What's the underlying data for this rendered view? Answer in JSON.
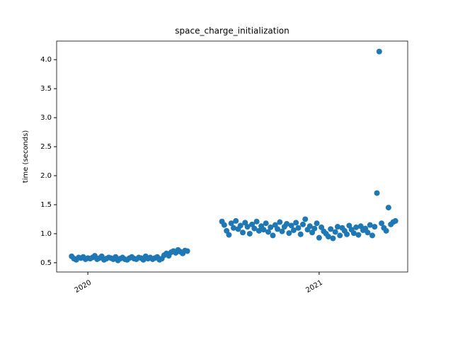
{
  "chart_data": {
    "type": "scatter",
    "title": "space_charge_initialization",
    "y_label": "time (seconds)",
    "color": "#1f77b4",
    "x": [
      2019.93,
      2019.94,
      2019.95,
      2019.96,
      2019.97,
      2019.98,
      2019.99,
      2020.0,
      2020.01,
      2020.02,
      2020.03,
      2020.04,
      2020.05,
      2020.06,
      2020.07,
      2020.08,
      2020.09,
      2020.1,
      2020.11,
      2020.12,
      2020.13,
      2020.14,
      2020.15,
      2020.16,
      2020.17,
      2020.18,
      2020.19,
      2020.2,
      2020.21,
      2020.22,
      2020.23,
      2020.24,
      2020.25,
      2020.26,
      2020.27,
      2020.28,
      2020.29,
      2020.3,
      2020.31,
      2020.32,
      2020.33,
      2020.34,
      2020.35,
      2020.36,
      2020.37,
      2020.38,
      2020.39,
      2020.4,
      2020.41,
      2020.42,
      2020.43,
      2020.58,
      2020.59,
      2020.6,
      2020.61,
      2020.62,
      2020.63,
      2020.64,
      2020.65,
      2020.66,
      2020.67,
      2020.68,
      2020.69,
      2020.7,
      2020.71,
      2020.72,
      2020.73,
      2020.74,
      2020.75,
      2020.76,
      2020.77,
      2020.78,
      2020.79,
      2020.8,
      2020.81,
      2020.82,
      2020.83,
      2020.84,
      2020.85,
      2020.86,
      2020.87,
      2020.88,
      2020.89,
      2020.9,
      2020.91,
      2020.92,
      2020.93,
      2020.94,
      2020.95,
      2020.96,
      2020.97,
      2020.98,
      2020.99,
      2021.0,
      2021.01,
      2021.02,
      2021.03,
      2021.04,
      2021.05,
      2021.06,
      2021.07,
      2021.08,
      2021.09,
      2021.1,
      2021.11,
      2021.12,
      2021.13,
      2021.14,
      2021.15,
      2021.16,
      2021.17,
      2021.18,
      2021.19,
      2021.2,
      2021.21,
      2021.22,
      2021.23,
      2021.24,
      2021.25,
      2021.26,
      2021.27,
      2021.28,
      2021.29,
      2021.3,
      2021.31,
      2021.32,
      2021.33
    ],
    "values": [
      0.61,
      0.57,
      0.55,
      0.59,
      0.58,
      0.6,
      0.56,
      0.58,
      0.57,
      0.59,
      0.62,
      0.56,
      0.58,
      0.61,
      0.55,
      0.57,
      0.59,
      0.58,
      0.56,
      0.6,
      0.54,
      0.57,
      0.59,
      0.56,
      0.55,
      0.58,
      0.6,
      0.57,
      0.56,
      0.59,
      0.58,
      0.55,
      0.61,
      0.57,
      0.59,
      0.56,
      0.58,
      0.6,
      0.55,
      0.57,
      0.63,
      0.66,
      0.62,
      0.68,
      0.7,
      0.67,
      0.72,
      0.69,
      0.66,
      0.71,
      0.7,
      1.21,
      1.15,
      1.05,
      0.98,
      1.18,
      1.1,
      1.22,
      1.08,
      1.14,
      1.02,
      1.19,
      1.12,
      1.0,
      1.16,
      1.09,
      1.21,
      1.05,
      1.13,
      1.07,
      1.18,
      1.03,
      1.11,
      0.97,
      1.15,
      1.08,
      1.2,
      1.04,
      1.12,
      1.17,
      1.01,
      1.14,
      1.06,
      1.19,
      1.1,
      0.99,
      1.16,
      1.25,
      1.07,
      1.13,
      1.02,
      1.09,
      1.18,
      0.93,
      1.11,
      1.04,
      1.0,
      0.95,
      1.08,
      0.92,
      1.03,
      1.12,
      0.97,
      1.1,
      1.05,
      0.99,
      1.14,
      1.07,
      1.01,
      1.11,
      0.98,
      1.13,
      1.06,
      1.09,
      1.02,
      1.15,
      0.97,
      1.12,
      1.7,
      4.14,
      1.18,
      1.1,
      1.05,
      1.45,
      1.16,
      1.2,
      1.22
    ],
    "xlim": [
      2019.865,
      2021.383
    ],
    "xticks": [
      2020,
      2021
    ],
    "ylim": [
      0.34,
      4.32
    ],
    "yticks": [
      0.5,
      {
        "value": 1,
        "label": "1.0"
      },
      1.5,
      {
        "value": 2,
        "label": "2.0"
      },
      2.5,
      {
        "value": 3,
        "label": "3.0"
      },
      3.5,
      {
        "value": 4,
        "label": "4.0"
      }
    ]
  }
}
